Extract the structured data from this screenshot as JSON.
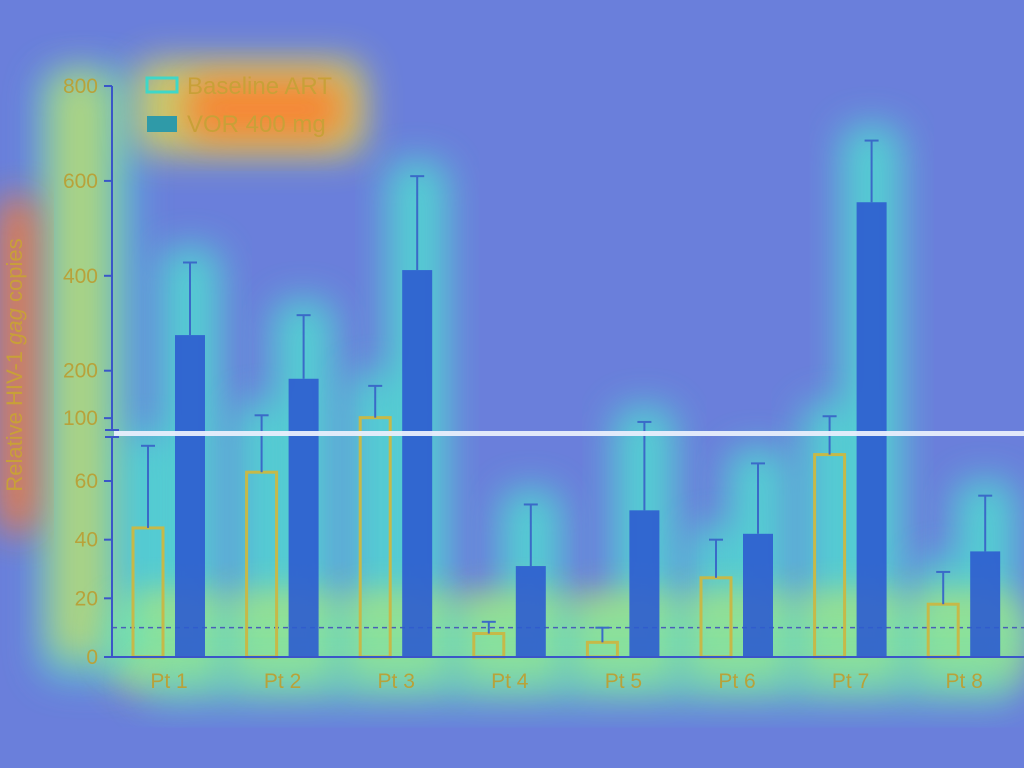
{
  "chart_data": {
    "type": "bar",
    "title": "",
    "xlabel": "",
    "ylabel_parts": [
      "Relative HIV-1 ",
      "gag",
      " copies"
    ],
    "categories": [
      "Pt 1",
      "Pt 2",
      "Pt 3",
      "Pt 4",
      "Pt 5",
      "Pt 6",
      "Pt 7",
      "Pt 8"
    ],
    "series": [
      {
        "name": "Baseline ART",
        "style": "open",
        "values": [
          44,
          63,
          101,
          8,
          5,
          27,
          69,
          18
        ],
        "error_upper": [
          72,
          106,
          168,
          12,
          10,
          40,
          104,
          29
        ]
      },
      {
        "name": "VOR 400 mg",
        "style": "filled",
        "values": [
          275,
          183,
          412,
          31,
          50,
          42,
          555,
          36
        ],
        "error_upper": [
          428,
          317,
          610,
          52,
          92,
          66,
          685,
          55
        ]
      }
    ],
    "y_axis": {
      "type": "broken",
      "lower_range": [
        0,
        75
      ],
      "lower_ticks": [
        0,
        20,
        40,
        60
      ],
      "upper_range": [
        75,
        800
      ],
      "upper_ticks": [
        100,
        200,
        400,
        600,
        800
      ]
    },
    "reference_line": {
      "value": 10,
      "style": "dashed"
    },
    "legend_position": "top-left",
    "overlay": "attention heatmap"
  },
  "colors": {
    "background": "#6a7fdb",
    "axis": "#3a56c8",
    "filled_bar": "#2e5ccf",
    "open_bar_stroke": "#c6b948",
    "text": "#b8a23a",
    "heat_warm": "#ff7a2a",
    "heat_mid": "#f2ea3c",
    "heat_cool": "#4fe0d0"
  }
}
